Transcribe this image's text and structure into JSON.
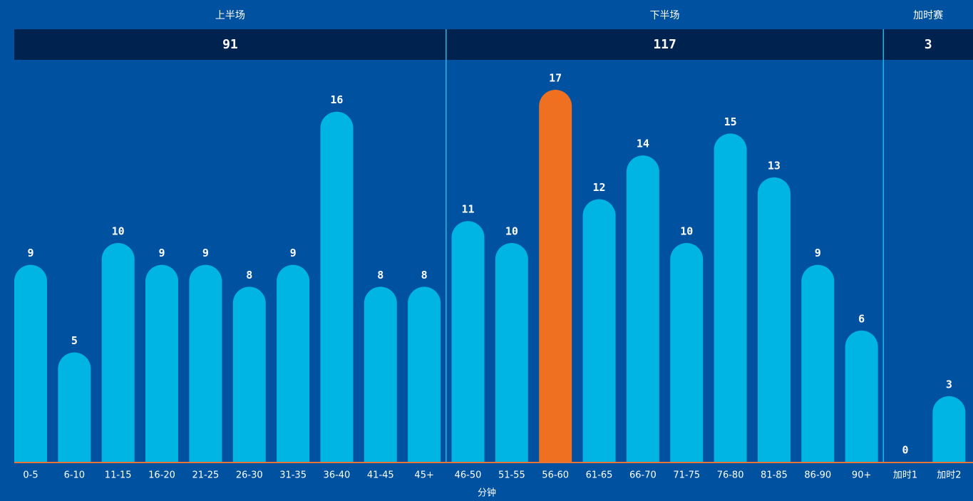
{
  "chart_data": {
    "type": "bar",
    "xlabel": "分钟",
    "ylim": [
      0,
      17
    ],
    "sections": [
      {
        "name": "上半场",
        "total": 91,
        "categories": [
          "0-5",
          "6-10",
          "11-15",
          "16-20",
          "21-25",
          "26-30",
          "31-35",
          "36-40",
          "41-45",
          "45+"
        ],
        "values": [
          9,
          5,
          10,
          9,
          9,
          8,
          9,
          16,
          8,
          8
        ],
        "colors": [
          "#00b4e4",
          "#00b4e4",
          "#00b4e4",
          "#00b4e4",
          "#00b4e4",
          "#00b4e4",
          "#00b4e4",
          "#00b4e4",
          "#00b4e4",
          "#00b4e4"
        ]
      },
      {
        "name": "下半场",
        "total": 117,
        "categories": [
          "46-50",
          "51-55",
          "56-60",
          "61-65",
          "66-70",
          "71-75",
          "76-80",
          "81-85",
          "86-90",
          "90+"
        ],
        "values": [
          11,
          10,
          17,
          12,
          14,
          10,
          15,
          13,
          9,
          6
        ],
        "colors": [
          "#00b4e4",
          "#00b4e4",
          "#ee7020",
          "#00b4e4",
          "#00b4e4",
          "#00b4e4",
          "#00b4e4",
          "#00b4e4",
          "#00b4e4",
          "#00b4e4"
        ]
      },
      {
        "name": "加时赛",
        "total": 3,
        "categories": [
          "加时1",
          "加时2"
        ],
        "values": [
          0,
          3
        ],
        "colors": [
          "#00b4e4",
          "#00b4e4"
        ]
      }
    ]
  }
}
